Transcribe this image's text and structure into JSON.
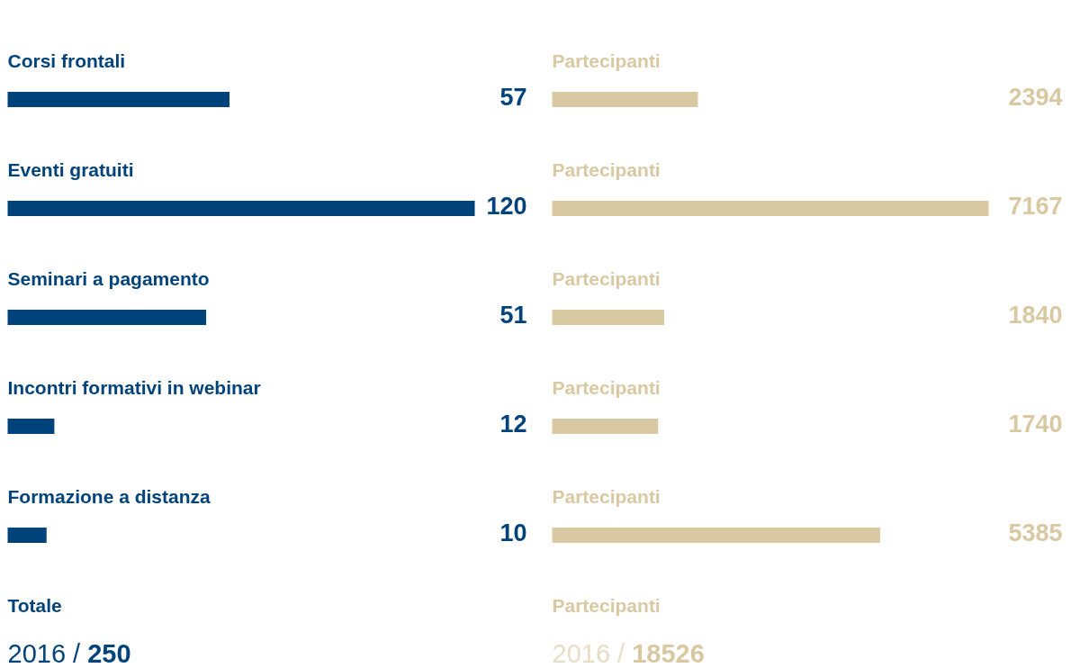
{
  "chart_data": [
    {
      "type": "bar",
      "orientation": "horizontal",
      "categories": [
        "Corsi frontali",
        "Eventi gratuiti",
        "Seminari a pagamento",
        "Incontri formativi in webinar",
        "Formazione a distanza"
      ],
      "values": [
        57,
        120,
        51,
        12,
        10
      ],
      "color": "#00427a",
      "data_labels": true,
      "annotations": [
        "Totale",
        "2016 / 250"
      ]
    },
    {
      "type": "bar",
      "orientation": "horizontal",
      "categories": [
        "Partecipanti",
        "Partecipanti",
        "Partecipanti",
        "Partecipanti",
        "Partecipanti"
      ],
      "values": [
        2394,
        7167,
        1840,
        1740,
        5385
      ],
      "color": "#d8c9a3",
      "data_labels": true,
      "annotations": [
        "Partecipanti",
        "2016 / 18526"
      ]
    }
  ]
}
